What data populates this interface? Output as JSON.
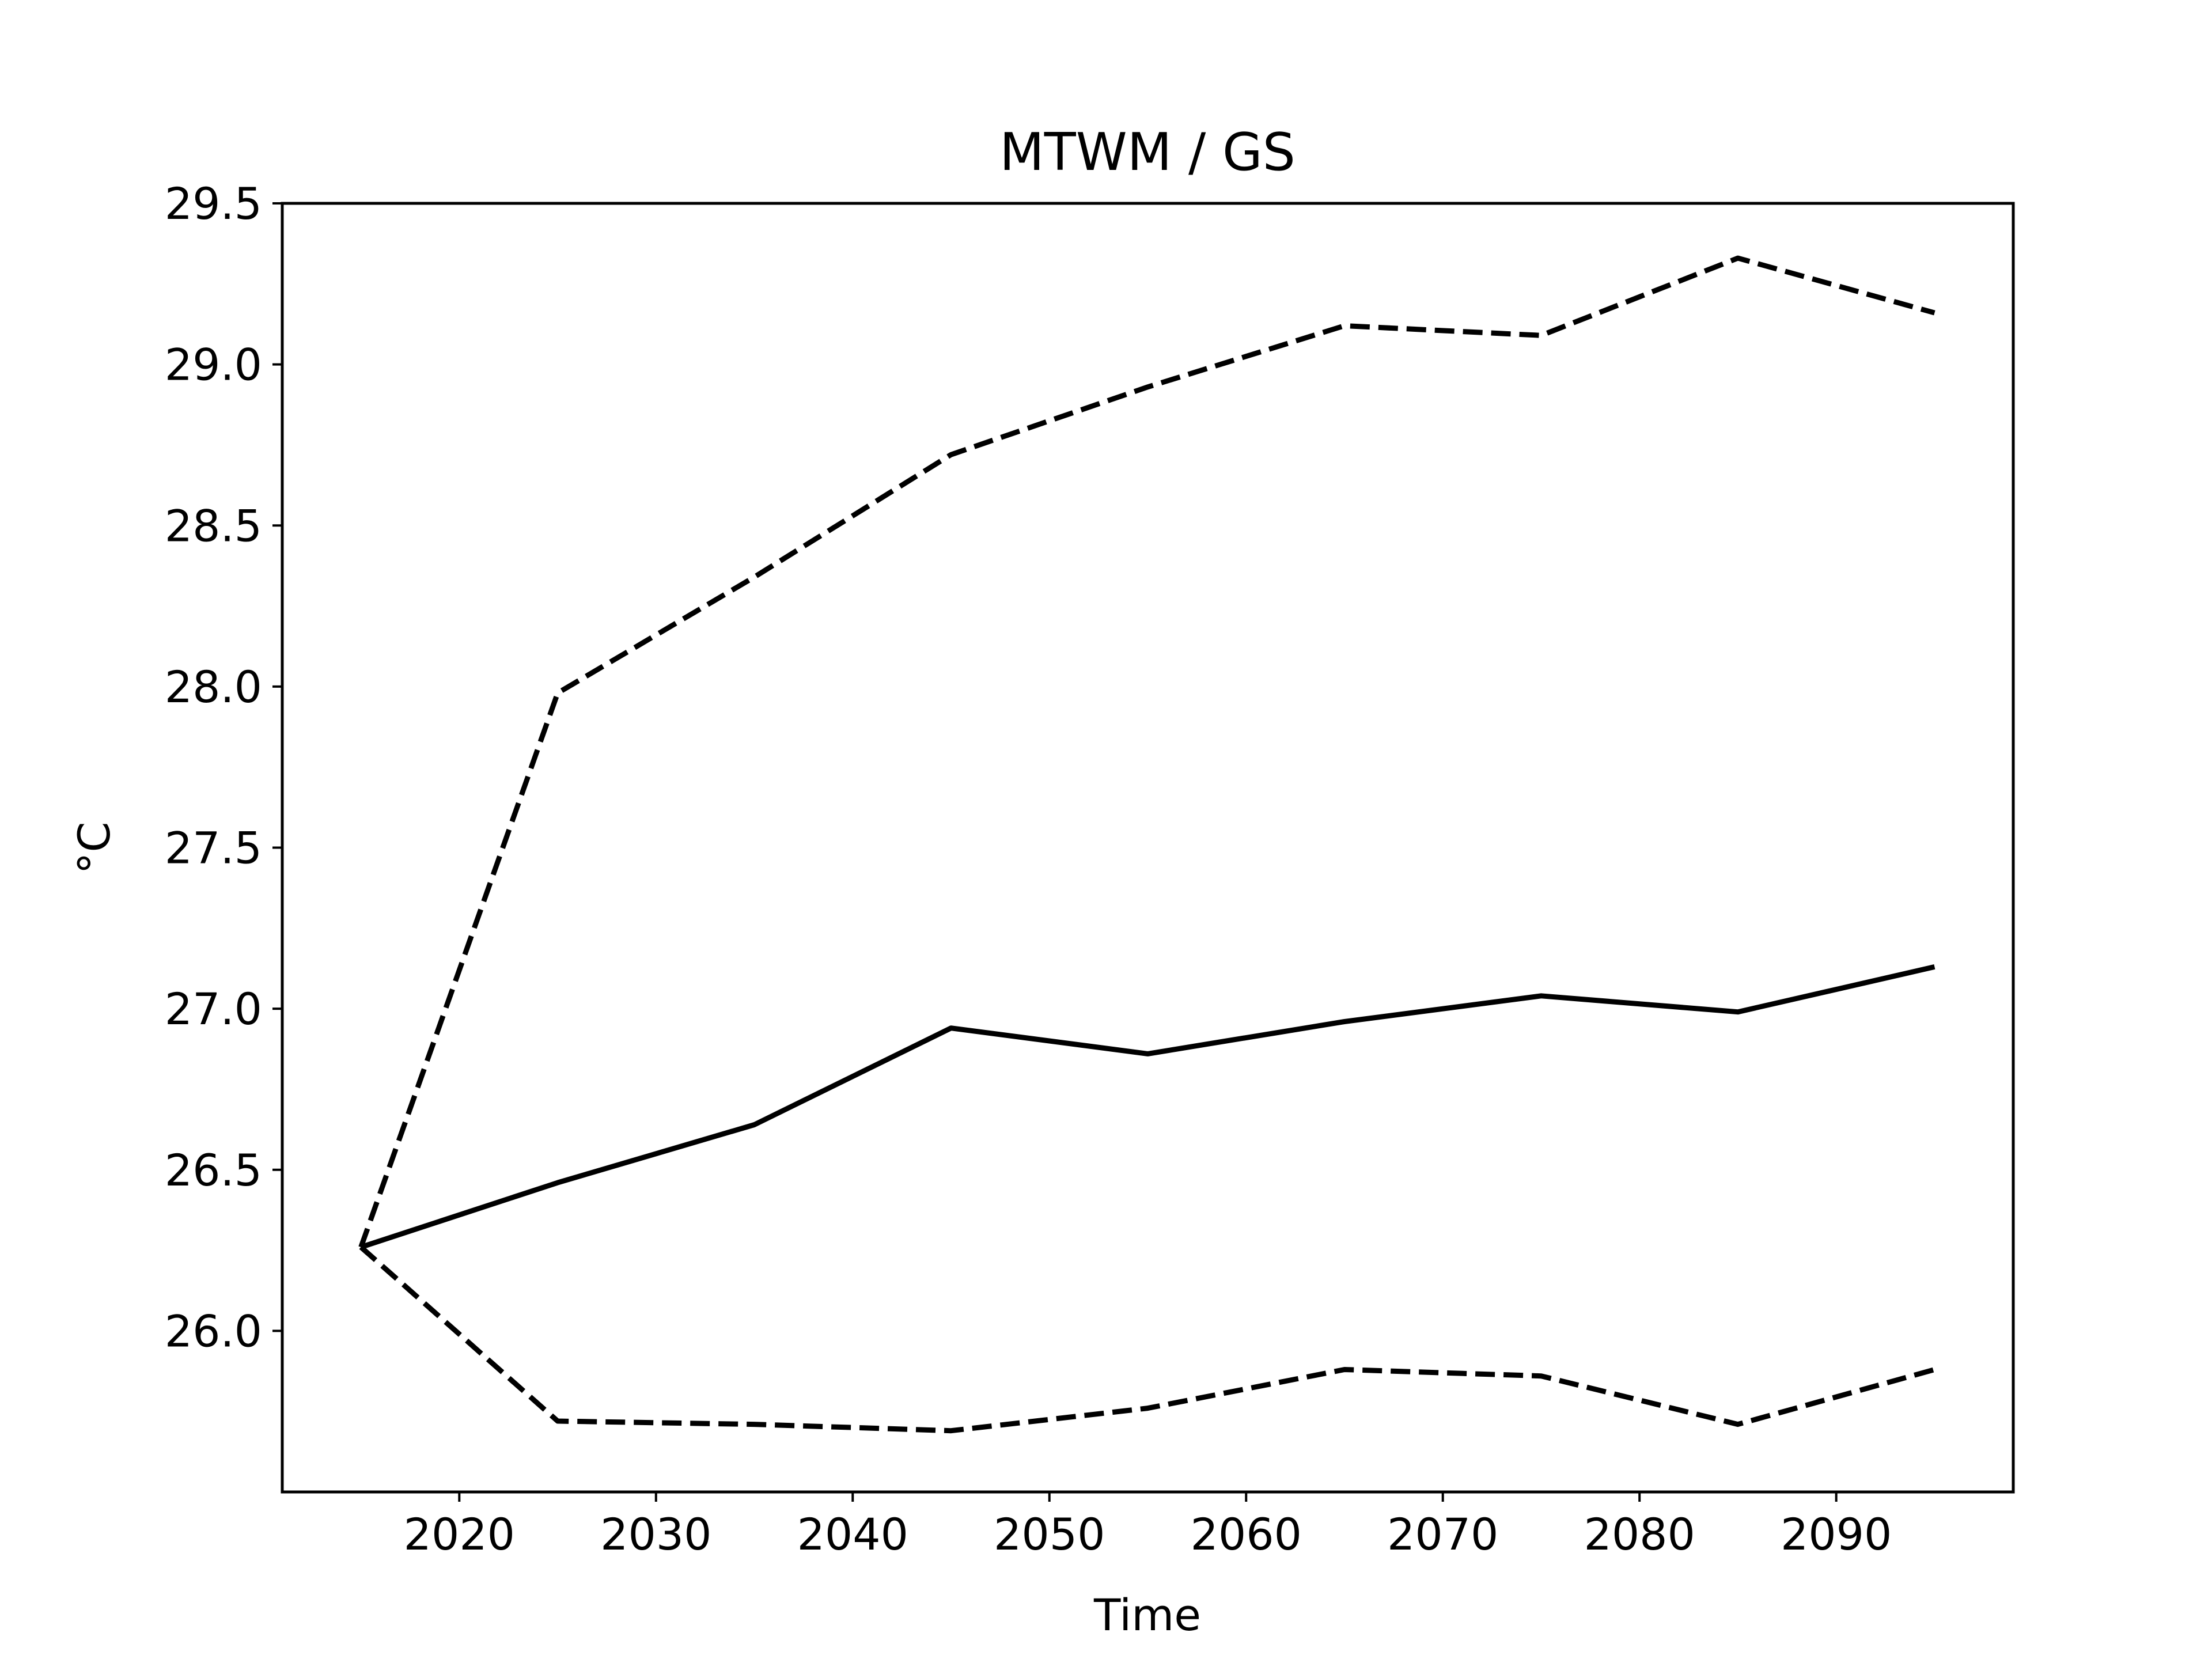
{
  "chart_data": {
    "type": "line",
    "title": "MTWM / GS",
    "xlabel": "Time",
    "ylabel": "°C",
    "xlim": [
      2011,
      2099
    ],
    "ylim": [
      25.5,
      29.5
    ],
    "xticks": [
      2020,
      2030,
      2040,
      2050,
      2060,
      2070,
      2080,
      2090
    ],
    "yticks": [
      26.0,
      26.5,
      27.0,
      27.5,
      28.0,
      28.5,
      29.0,
      29.5
    ],
    "grid": false,
    "x": [
      2015,
      2025,
      2035,
      2045,
      2055,
      2065,
      2075,
      2085,
      2095
    ],
    "series": [
      {
        "style": "solid",
        "color": "#000000",
        "values": [
          26.26,
          26.46,
          26.64,
          26.94,
          26.86,
          26.96,
          27.04,
          26.99,
          27.13
        ]
      },
      {
        "style": "dashed",
        "color": "#000000",
        "values": [
          26.26,
          27.98,
          28.34,
          28.72,
          28.93,
          29.12,
          29.09,
          29.33,
          29.16
        ]
      },
      {
        "style": "dashed",
        "color": "#000000",
        "values": [
          26.26,
          25.72,
          25.71,
          25.69,
          25.76,
          25.88,
          25.86,
          25.71,
          25.88
        ]
      }
    ]
  }
}
